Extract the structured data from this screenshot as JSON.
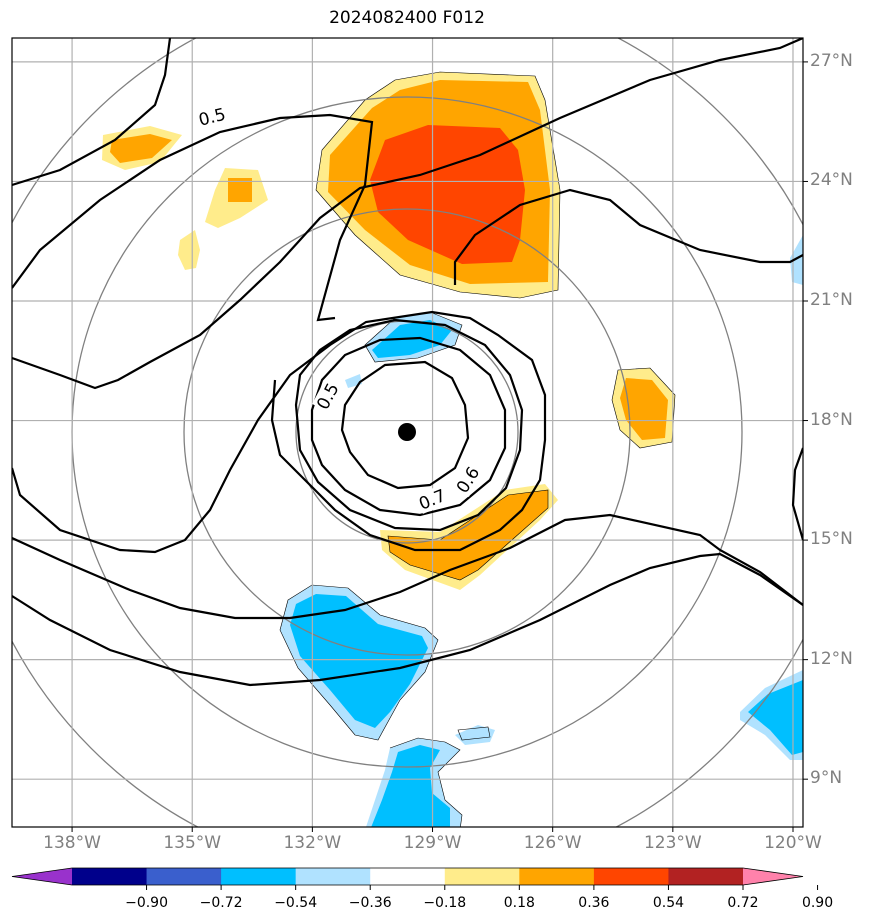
{
  "title": "2024082400 F012",
  "storm_center": {
    "lon": -129.5,
    "lat": 17.6
  },
  "axes": {
    "lon_range": [
      -139.5,
      -119.75
    ],
    "lat_range": [
      7.8,
      27.6
    ],
    "lat_ticks": [
      {
        "value": 27,
        "label": "27°N"
      },
      {
        "value": 24,
        "label": "24°N"
      },
      {
        "value": 21,
        "label": "21°N"
      },
      {
        "value": 18,
        "label": "18°N"
      },
      {
        "value": 15,
        "label": "15°N"
      },
      {
        "value": 12,
        "label": "12°N"
      },
      {
        "value": 9,
        "label": "9°N"
      }
    ],
    "lon_ticks": [
      {
        "value": -138,
        "label": "138°W"
      },
      {
        "value": -135,
        "label": "135°W"
      },
      {
        "value": -132,
        "label": "132°W"
      },
      {
        "value": -129,
        "label": "129°W"
      },
      {
        "value": -126,
        "label": "126°W"
      },
      {
        "value": -123,
        "label": "123°W"
      },
      {
        "value": -120,
        "label": "120°W"
      }
    ],
    "grid": true
  },
  "range_rings_deg": [
    2.5,
    5.0,
    7.5,
    10.0
  ],
  "contour_labels": [
    {
      "text": "0.5",
      "lon": -134.5,
      "lat": 25.6,
      "angle": -14
    },
    {
      "text": "0.5",
      "lon": -131.6,
      "lat": 18.6,
      "angle": -62
    },
    {
      "text": "0.7",
      "lon": -129.0,
      "lat": 16.0,
      "angle": -22
    },
    {
      "text": "0.6",
      "lon": -128.1,
      "lat": 16.5,
      "angle": -58
    }
  ],
  "colorbar": {
    "labels": [
      "−0.90",
      "−0.72",
      "−0.54",
      "−0.36",
      "−0.18",
      "0.18",
      "0.36",
      "0.54",
      "0.72",
      "0.90"
    ],
    "colors": [
      "#9932cc",
      "#00008b",
      "#3a5fcd",
      "#00bfff",
      "#b0e2ff",
      "#ffffff",
      "#ffec8b",
      "#ffa500",
      "#ff4500",
      "#b22222",
      "#ff82ab"
    ]
  }
}
